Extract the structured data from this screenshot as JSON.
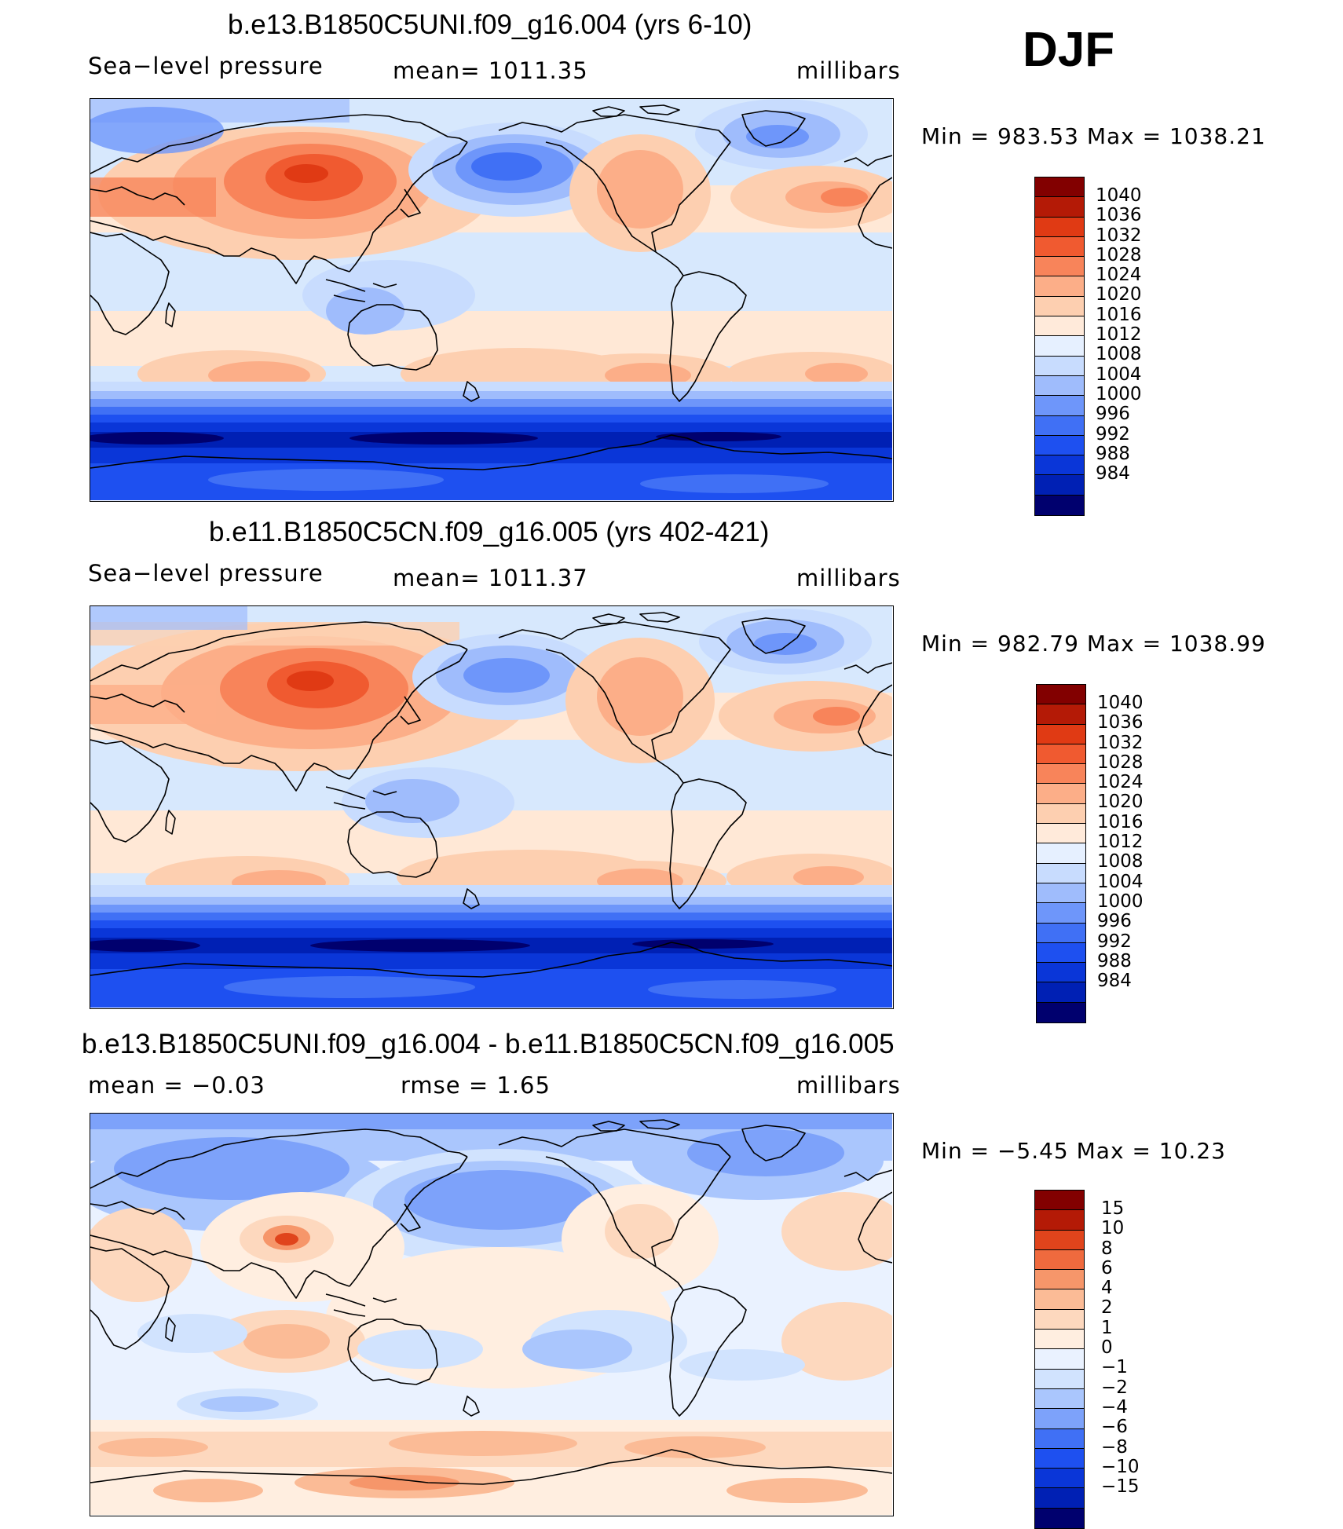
{
  "season": "DJF",
  "colors": {
    "slp": [
      "#00006e",
      "#0020b4",
      "#0a36d8",
      "#1e50f0",
      "#4070f5",
      "#6e96fa",
      "#9fbcfc",
      "#c8dcfe",
      "#e6f0ff",
      "#ffeada",
      "#fdcfb0",
      "#fcae88",
      "#f8845a",
      "#f05a30",
      "#e03a14",
      "#b41a06",
      "#820000"
    ],
    "diff": [
      "#00006e",
      "#0020b4",
      "#0a36d8",
      "#1e50f0",
      "#4070f5",
      "#7da2fa",
      "#aac6fd",
      "#d1e3fe",
      "#eaf2ff",
      "#ffeee0",
      "#fdd8be",
      "#fbbb96",
      "#f6966a",
      "#ef6a3e",
      "#e0441c",
      "#b41a06",
      "#820000"
    ],
    "ocean": "#d7e8fd"
  },
  "panels": [
    {
      "title": "b.e13.B1850C5UNI.f09_g16.004 (yrs 6-10)",
      "left_label": "Sea−level pressure",
      "center_label": "mean=  1011.35",
      "right_label": "millibars",
      "minmax": "Min  =  983.53  Max  =  1038.21",
      "colorbar_labels": [
        "1040",
        "1036",
        "1032",
        "1028",
        "1024",
        "1020",
        "1016",
        "1012",
        "1008",
        "1004",
        "1000",
        "996",
        "992",
        "988",
        "984"
      ]
    },
    {
      "title": "b.e11.B1850C5CN.f09_g16.005 (yrs 402-421)",
      "left_label": "Sea−level pressure",
      "center_label": "mean=  1011.37",
      "right_label": "millibars",
      "minmax": "Min  =  982.79  Max  =  1038.99",
      "colorbar_labels": [
        "1040",
        "1036",
        "1032",
        "1028",
        "1024",
        "1020",
        "1016",
        "1012",
        "1008",
        "1004",
        "1000",
        "996",
        "992",
        "988",
        "984"
      ]
    },
    {
      "title": "b.e13.B1850C5UNI.f09_g16.004 - b.e11.B1850C5CN.f09_g16.005",
      "left_label": "mean  =    −0.03",
      "center_label": "rmse  =      1.65",
      "right_label": "millibars",
      "minmax": "Min  =    −5.45  Max  =    10.23",
      "colorbar_labels": [
        "15",
        "10",
        "8",
        "6",
        "4",
        "2",
        "1",
        "0",
        "−1",
        "−2",
        "−4",
        "−6",
        "−8",
        "−10",
        "−15"
      ]
    }
  ]
}
